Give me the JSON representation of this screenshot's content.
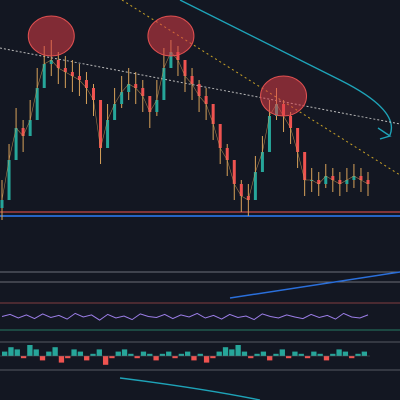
{
  "chart_data": [
    {
      "type": "candlestick",
      "panel": "price",
      "title": "",
      "xlabel": "",
      "ylabel": "",
      "ylim": [
        0,
        100
      ],
      "grid": false,
      "colors": {
        "up": "#26a69a",
        "down": "#ef5350",
        "wick": "#d8a25a"
      },
      "closes": [
        20,
        40,
        56,
        52,
        60,
        76,
        88,
        90,
        86,
        84,
        82,
        80,
        76,
        70,
        46,
        60,
        68,
        74,
        78,
        76,
        72,
        64,
        70,
        86,
        94,
        90,
        82,
        78,
        72,
        68,
        58,
        46,
        40,
        28,
        22,
        20,
        34,
        44,
        62,
        68,
        62,
        56,
        44,
        30,
        30,
        28,
        32,
        30,
        28,
        30,
        32,
        30,
        28
      ],
      "highs": [
        30,
        48,
        66,
        60,
        70,
        86,
        97,
        100,
        94,
        92,
        90,
        88,
        84,
        78,
        56,
        68,
        76,
        82,
        86,
        84,
        80,
        72,
        80,
        96,
        100,
        97,
        90,
        86,
        80,
        76,
        66,
        54,
        48,
        36,
        30,
        28,
        42,
        52,
        70,
        76,
        70,
        64,
        52,
        38,
        36,
        34,
        38,
        36,
        34,
        36,
        38,
        36,
        34
      ],
      "lows": [
        10,
        30,
        46,
        44,
        52,
        68,
        80,
        82,
        78,
        76,
        74,
        72,
        68,
        62,
        38,
        52,
        60,
        66,
        70,
        68,
        64,
        56,
        62,
        78,
        86,
        82,
        74,
        70,
        64,
        60,
        50,
        38,
        32,
        20,
        14,
        12,
        26,
        36,
        54,
        60,
        54,
        48,
        36,
        22,
        24,
        22,
        26,
        24,
        22,
        24,
        26,
        24,
        22
      ],
      "support_level": 12,
      "resistance_level": 14,
      "descending_trendline_y": [
        96,
        58
      ],
      "highlighted_peaks": [
        7,
        24,
        40
      ]
    },
    {
      "type": "line",
      "panel": "oscillator",
      "title": "",
      "ylim": [
        0,
        100
      ],
      "values": [
        52,
        60,
        46,
        58,
        44,
        62,
        48,
        56,
        42,
        64,
        50,
        58,
        38,
        60,
        46,
        54,
        40,
        62,
        52,
        48,
        60,
        44,
        58,
        50,
        64,
        46,
        56,
        42,
        60,
        48,
        54,
        40,
        62,
        52,
        46,
        58,
        50,
        44,
        60,
        48,
        56,
        42,
        64,
        50,
        46,
        58
      ],
      "colors": {
        "line": "#9c7ee8"
      }
    },
    {
      "type": "bar",
      "panel": "histogram",
      "title": "",
      "values": [
        2,
        4,
        3,
        -1,
        5,
        3,
        -2,
        2,
        4,
        -3,
        -1,
        3,
        2,
        -2,
        1,
        3,
        -4,
        -1,
        2,
        3,
        1,
        -1,
        2,
        1,
        -2,
        1,
        2,
        -1,
        1,
        2,
        -2,
        1,
        -3,
        -1,
        2,
        4,
        3,
        5,
        2,
        -1,
        1,
        2,
        -2,
        1,
        3,
        -1,
        2,
        1,
        -1,
        2,
        1,
        -2,
        1,
        3,
        2,
        -1,
        1,
        2
      ],
      "colors": {
        "positive": "#26a69a",
        "negative": "#ef5350"
      }
    }
  ]
}
